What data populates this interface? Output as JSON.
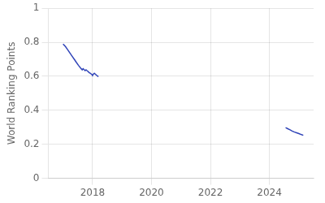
{
  "chart_data": {
    "type": "line",
    "ylabel": "World Ranking Points",
    "series": [
      {
        "color": "#3044b8",
        "x": [
          2017.0,
          2017.08,
          2017.15,
          2017.22,
          2017.3,
          2017.38,
          2017.45,
          2017.52,
          2017.6,
          2017.65,
          2017.68,
          2017.72,
          2017.75,
          2017.78,
          2017.82,
          2017.85,
          2017.88,
          2017.92,
          2017.95,
          2017.98,
          2018.0,
          2018.03,
          2018.06,
          2018.1,
          2018.13,
          2018.17,
          2018.2
        ],
        "values": [
          0.79,
          0.775,
          0.758,
          0.74,
          0.72,
          0.7,
          0.682,
          0.665,
          0.648,
          0.638,
          0.645,
          0.638,
          0.633,
          0.638,
          0.632,
          0.628,
          0.622,
          0.618,
          0.614,
          0.61,
          0.607,
          0.613,
          0.618,
          0.612,
          0.607,
          0.602,
          0.598
        ]
      },
      {
        "color": "#3044b8",
        "x": [
          2024.55,
          2024.62,
          2024.7,
          2024.77,
          2024.85,
          2024.92,
          2025.0,
          2025.07,
          2025.15
        ],
        "values": [
          0.298,
          0.292,
          0.285,
          0.278,
          0.272,
          0.268,
          0.263,
          0.258,
          0.253
        ]
      }
    ],
    "xlim": [
      2016.5,
      2025.5
    ],
    "ylim": [
      0,
      1
    ],
    "xticks": [
      2018,
      2020,
      2022,
      2024
    ],
    "yticks": [
      0,
      0.2,
      0.4,
      0.6,
      0.8,
      1
    ],
    "grid": true
  }
}
